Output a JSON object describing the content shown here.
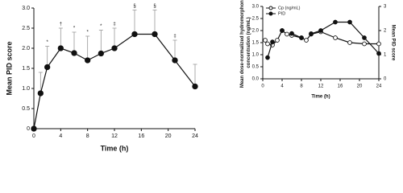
{
  "chart_data": [
    {
      "type": "line",
      "xlabel": "Time (h)",
      "ylabel": "Mean PID score",
      "x": [
        0,
        1,
        2,
        4,
        6,
        8,
        10,
        12,
        15,
        18,
        21,
        24
      ],
      "series": [
        {
          "color": "#111111",
          "values": [
            0,
            0.88,
            1.53,
            2.0,
            1.88,
            1.7,
            1.87,
            2.0,
            2.35,
            2.35,
            1.7,
            1.05
          ],
          "errors": [
            0,
            0.52,
            0.52,
            0.5,
            0.52,
            0.6,
            0.58,
            0.5,
            0.6,
            0.6,
            0.5,
            0.55
          ],
          "significance": [
            null,
            null,
            "*",
            "†",
            "*",
            "*",
            "*",
            "‡",
            "§",
            "§",
            "‡",
            null
          ]
        }
      ],
      "xlim": [
        0,
        24
      ],
      "xticks": [
        0,
        4,
        8,
        12,
        16,
        20,
        24
      ],
      "ylim": [
        0,
        3
      ],
      "yticks": [
        0,
        0.5,
        {
          "value": 1,
          "label": "1.0"
        },
        1.5,
        {
          "value": 2,
          "label": "2.0"
        },
        2.5,
        {
          "value": 3,
          "label": "3.0"
        }
      ]
    },
    {
      "type": "line",
      "xlabel": "Time (h)",
      "ylabel": "Mean dose-normalized hydromorphone concentration (ng/mL)",
      "y2label": "Mean PID score",
      "x": [
        0.5,
        1,
        2,
        3,
        4,
        5,
        6,
        8,
        9,
        10,
        12,
        15,
        18,
        21,
        24
      ],
      "series": [
        {
          "name": "Cp (ng/mL)",
          "color": "#111111",
          "marker": "open",
          "values": [
            1.6,
            1.45,
            1.4,
            1.6,
            2.0,
            1.85,
            1.8,
            1.7,
            1.6,
            1.85,
            1.95,
            1.7,
            1.5,
            1.45,
            1.45
          ]
        },
        {
          "name": "PID",
          "color": "#111111",
          "marker": "filled",
          "axis": "y2",
          "values": [
            null,
            0.88,
            1.53,
            null,
            2.0,
            null,
            1.88,
            1.7,
            null,
            1.87,
            2.0,
            2.35,
            2.35,
            1.7,
            1.05
          ]
        }
      ],
      "legend": "upper left",
      "xlim": [
        0,
        24
      ],
      "xticks": [
        0,
        4,
        8,
        12,
        16,
        20,
        24
      ],
      "ylim": [
        0,
        3
      ],
      "yticks": [
        {
          "value": 0,
          "label": "0.0"
        },
        0.5,
        {
          "value": 1,
          "label": "1.0"
        },
        1.5,
        {
          "value": 2,
          "label": "2.0"
        },
        2.5,
        {
          "value": 3,
          "label": "3.0"
        }
      ],
      "y2lim": [
        0,
        3
      ],
      "y2ticks": [
        0,
        1,
        2,
        3
      ]
    }
  ]
}
